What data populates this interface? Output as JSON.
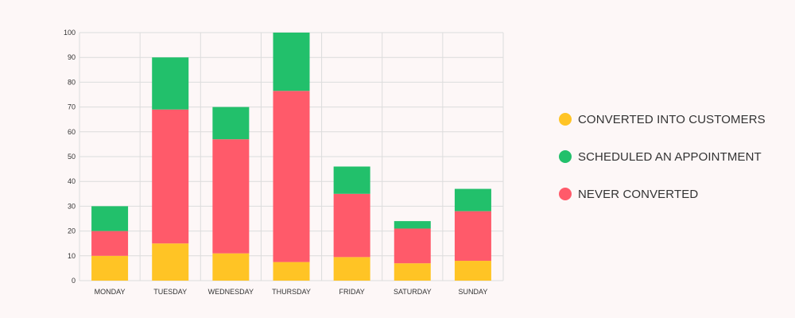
{
  "chart_data": {
    "type": "bar",
    "stacked": true,
    "title": "",
    "xlabel": "",
    "ylabel": "",
    "ylim": [
      0,
      100
    ],
    "yticks": [
      0,
      10,
      20,
      30,
      40,
      50,
      60,
      70,
      80,
      90,
      100
    ],
    "grid": true,
    "legend_position": "right",
    "categories": [
      "MONDAY",
      "TUESDAY",
      "WEDNESDAY",
      "THURSDAY",
      "FRIDAY",
      "SATURDAY",
      "SUNDAY"
    ],
    "series": [
      {
        "name": "CONVERTED INTO CUSTOMERS",
        "color": "#FFC425",
        "values": [
          10,
          15,
          11,
          7.5,
          9.5,
          7,
          8
        ]
      },
      {
        "name": "NEVER CONVERTED",
        "color": "#FF5A6A",
        "values": [
          10,
          54,
          46,
          69,
          25.5,
          14,
          20
        ]
      },
      {
        "name": "SCHEDULED AN APPOINTMENT",
        "color": "#22C06B",
        "values": [
          10,
          21,
          13,
          23.5,
          11,
          3,
          9
        ]
      }
    ]
  },
  "legend": {
    "items": [
      {
        "label": "CONVERTED INTO CUSTOMERS",
        "color": "#FFC425"
      },
      {
        "label": "SCHEDULED AN APPOINTMENT",
        "color": "#22C06B"
      },
      {
        "label": "NEVER CONVERTED",
        "color": "#FF5A6A"
      }
    ]
  }
}
